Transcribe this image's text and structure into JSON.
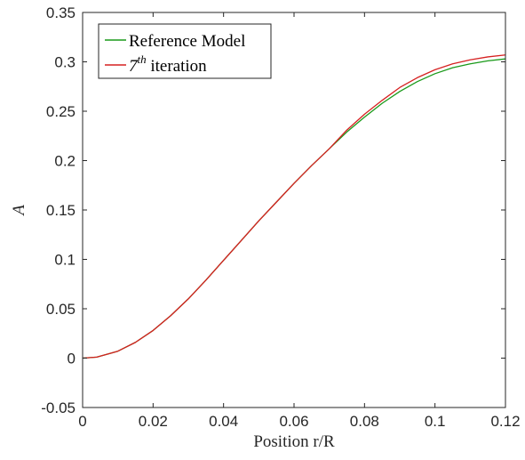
{
  "chart_data": {
    "type": "line",
    "title": "",
    "xlabel": "Position r/R",
    "ylabel": "A",
    "xlim": [
      0,
      0.12
    ],
    "ylim": [
      -0.05,
      0.35
    ],
    "x_ticks": [
      0,
      0.02,
      0.04,
      0.06,
      0.08,
      0.1,
      0.12
    ],
    "x_tick_labels": [
      "0",
      "0.02",
      "0.04",
      "0.06",
      "0.08",
      "0.1",
      "0.12"
    ],
    "y_ticks": [
      -0.05,
      0,
      0.05,
      0.1,
      0.15,
      0.2,
      0.25,
      0.3,
      0.35
    ],
    "y_tick_labels": [
      "-0.05",
      "0",
      "0.05",
      "0.1",
      "0.15",
      "0.2",
      "0.25",
      "0.3",
      "0.35"
    ],
    "grid": false,
    "legend_position": "top-left",
    "series": [
      {
        "name": "Reference Model",
        "color": "#1a9a1a",
        "x": [
          0,
          0.004,
          0.01,
          0.015,
          0.02,
          0.025,
          0.03,
          0.035,
          0.04,
          0.045,
          0.05,
          0.055,
          0.06,
          0.065,
          0.07,
          0.075,
          0.08,
          0.085,
          0.09,
          0.095,
          0.1,
          0.105,
          0.11,
          0.115,
          0.12
        ],
        "y": [
          0,
          0.001,
          0.007,
          0.016,
          0.028,
          0.043,
          0.06,
          0.079,
          0.099,
          0.119,
          0.139,
          0.158,
          0.177,
          0.195,
          0.212,
          0.229,
          0.244,
          0.258,
          0.27,
          0.28,
          0.288,
          0.294,
          0.298,
          0.301,
          0.303
        ]
      },
      {
        "name": "7th iteration",
        "legend_base": "7",
        "legend_sup": "th",
        "legend_suffix": " iteration",
        "color": "#d62020",
        "x": [
          0,
          0.004,
          0.01,
          0.015,
          0.02,
          0.025,
          0.03,
          0.035,
          0.04,
          0.045,
          0.05,
          0.055,
          0.06,
          0.065,
          0.07,
          0.075,
          0.08,
          0.085,
          0.09,
          0.095,
          0.1,
          0.105,
          0.11,
          0.115,
          0.12
        ],
        "y": [
          0,
          0.001,
          0.007,
          0.016,
          0.028,
          0.043,
          0.06,
          0.079,
          0.099,
          0.119,
          0.139,
          0.158,
          0.177,
          0.195,
          0.212,
          0.231,
          0.247,
          0.261,
          0.274,
          0.284,
          0.292,
          0.298,
          0.302,
          0.305,
          0.307
        ]
      }
    ]
  }
}
